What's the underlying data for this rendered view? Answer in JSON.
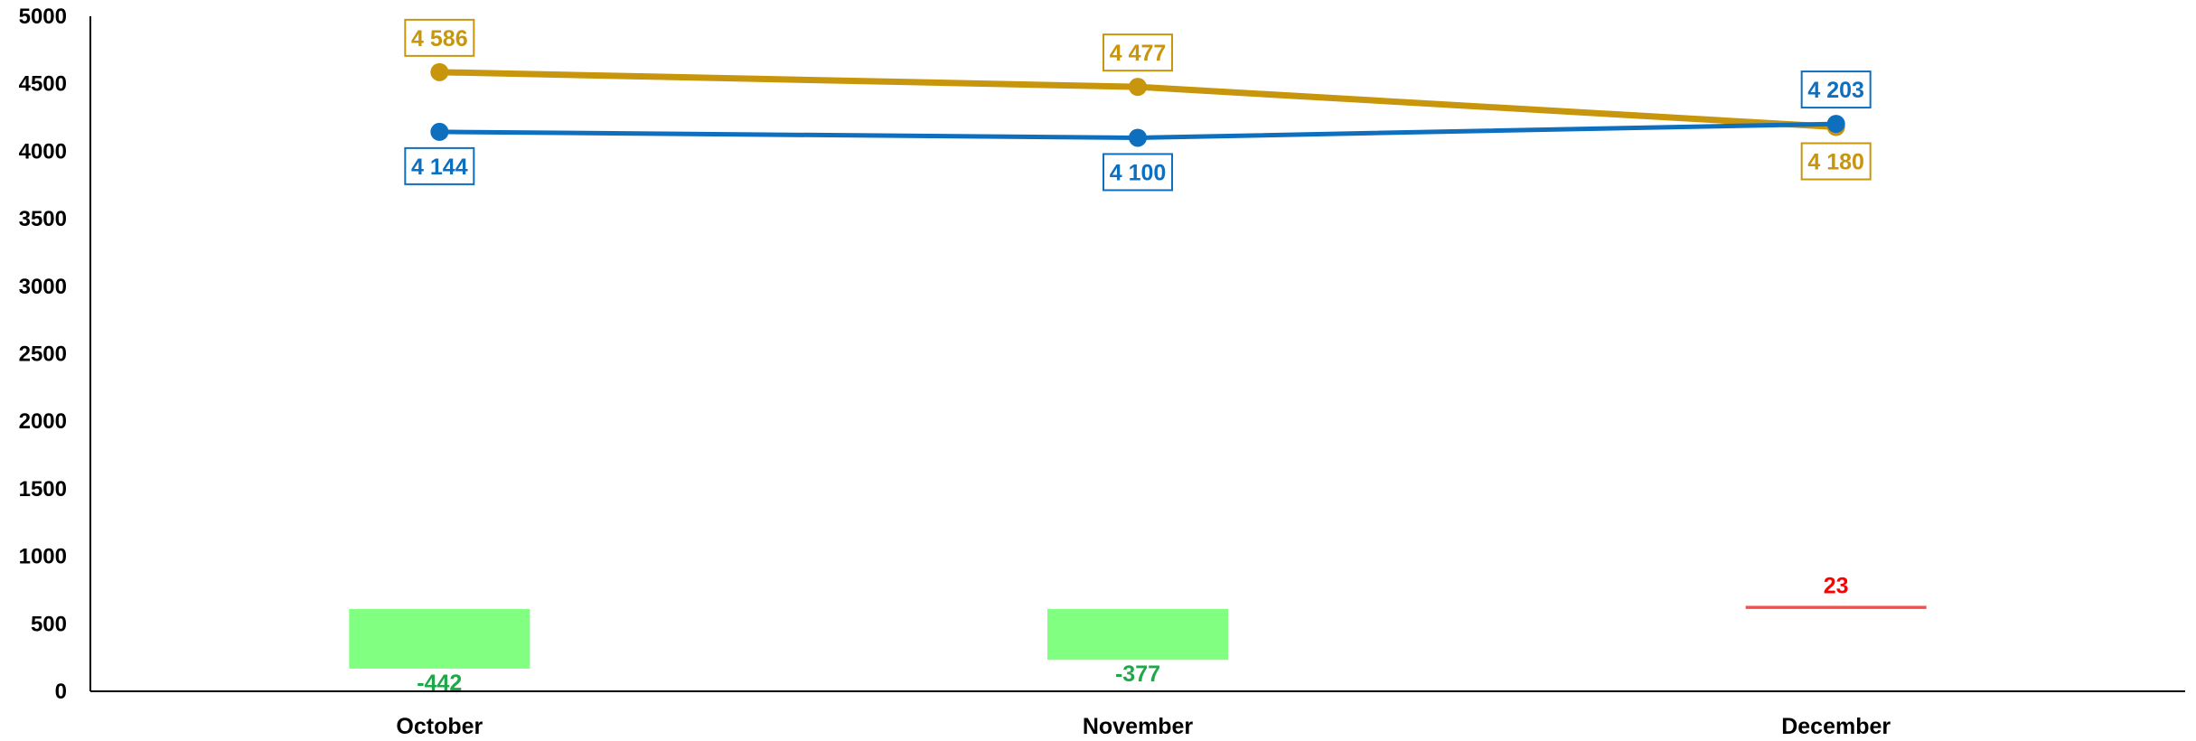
{
  "chart_data": {
    "type": "line",
    "categories": [
      "October",
      "November",
      "December"
    ],
    "ylim": [
      0,
      5000
    ],
    "yticks": [
      0,
      500,
      1000,
      1500,
      2000,
      2500,
      3000,
      3500,
      4000,
      4500,
      5000
    ],
    "ytick_labels": [
      "0",
      "500",
      "1000",
      "1500",
      "2000",
      "2500",
      "3000",
      "3500",
      "4000",
      "4500",
      "5000"
    ],
    "grid": false,
    "legend": "none",
    "series": [
      {
        "color": "#C8960C",
        "values": [
          4586,
          4477,
          4180
        ],
        "labels": [
          "4 586",
          "4 477",
          "4 180"
        ],
        "label_positions": [
          "above",
          "above",
          "below"
        ]
      },
      {
        "color": "#0F6FBF",
        "values": [
          4144,
          4100,
          4203
        ],
        "labels": [
          "4 144",
          "4 100",
          "4 203"
        ],
        "label_positions": [
          "below",
          "below",
          "above"
        ]
      }
    ],
    "differences": {
      "values": [
        -442,
        -377,
        23
      ],
      "labels": [
        "-442",
        "-377",
        "23"
      ],
      "baseline": 610,
      "negative_fill": "#80FF80",
      "negative_text": "#1FA84A",
      "positive_fill": "#F25050",
      "positive_text": "#FF0000"
    }
  }
}
